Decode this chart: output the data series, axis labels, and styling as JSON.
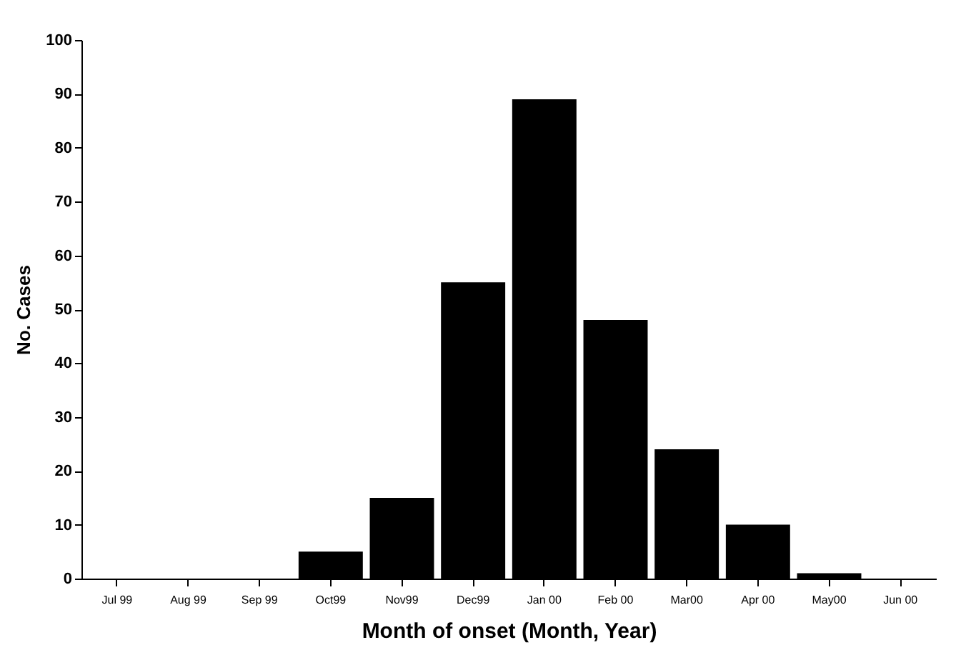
{
  "chart_data": {
    "type": "bar",
    "xlabel": "Month of onset  (Month, Year)",
    "ylabel": "No. Cases",
    "categories": [
      "Jul 99",
      "Aug 99",
      "Sep 99",
      "Oct99",
      "Nov99",
      "Dec99",
      "Jan 00",
      "Feb 00",
      "Mar00",
      "Apr 00",
      "May00",
      "Jun 00"
    ],
    "values": [
      0,
      0,
      0,
      5,
      15,
      55,
      89,
      48,
      24,
      10,
      1,
      0
    ],
    "color": "#000000",
    "ylim": [
      0,
      100
    ],
    "yticks": [
      0,
      10,
      20,
      30,
      40,
      50,
      60,
      70,
      80,
      90,
      100
    ],
    "grid": false
  }
}
